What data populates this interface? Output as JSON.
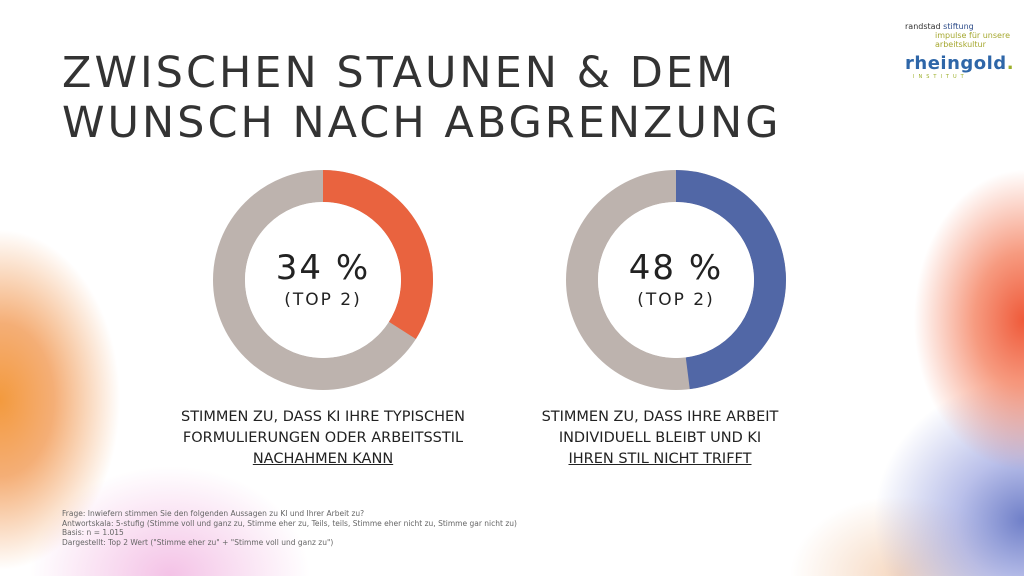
{
  "title": {
    "line1": "ZWISCHEN STAUNEN & DEM",
    "line2": "WUNSCH NACH ABGRENZUNG"
  },
  "logo": {
    "randstad": "randstad",
    "stiftung": "stiftung",
    "tagline1": "impulse für unsere",
    "tagline2": "arbeitskultur",
    "brand": "rheingold",
    "brand_dot": ".",
    "institut": "INSTITUT"
  },
  "chart_data": [
    {
      "type": "pie",
      "style": "donut",
      "value": 34,
      "unit": "%",
      "label": "34 %",
      "sublabel": "(TOP 2)",
      "caption_line1": "STIMMEN ZU, DASS KI IHRE TYPISCHEN",
      "caption_line2": "FORMULIERUNGEN ODER ARBEITSSTIL",
      "caption_line3": "NACHAHMEN KANN",
      "color": "#e9633f",
      "rest_color": "#bdb3ae"
    },
    {
      "type": "pie",
      "style": "donut",
      "value": 48,
      "unit": "%",
      "label": "48 %",
      "sublabel": "(TOP 2)",
      "caption_line1": "STIMMEN ZU, DASS IHRE ARBEIT",
      "caption_line2": "INDIVIDUELL BLEIBT UND KI",
      "caption_line3": "IHREN STIL NICHT TRIFFT",
      "color": "#5167a6",
      "rest_color": "#bdb3ae"
    }
  ],
  "footnote": {
    "frage": "Frage: Inwiefern stimmen Sie den folgenden Aussagen zu KI und Ihrer Arbeit zu?",
    "skala": "Antwortskala: 5-stufig (Stimme voll und ganz zu, Stimme eher zu, Teils, teils, Stimme eher nicht zu, Stimme gar nicht zu)",
    "basis": "Basis: n = 1.015",
    "dargestellt": "Dargestellt: Top 2 Wert (\"Stimme eher zu\" + \"Stimme voll und ganz zu\")"
  }
}
